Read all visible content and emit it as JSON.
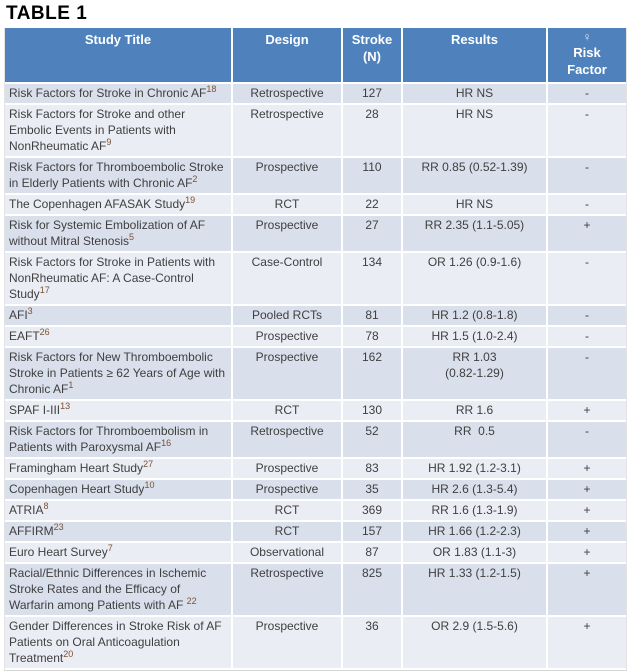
{
  "title": "TABLE 1",
  "colors": {
    "header_bg": "#4f81bd",
    "header_text": "#ffffff",
    "band_dark": "#d9dfeb",
    "band_light": "#eaedf4",
    "body_text": "#3f3f3f",
    "superscript_ref": "#7b5233"
  },
  "table": {
    "columns": [
      {
        "label": "Study Title"
      },
      {
        "label": "Design"
      },
      {
        "label": "Stroke\n(N)"
      },
      {
        "label": "Results"
      },
      {
        "symbol": "♀",
        "label": "Risk\nFactor"
      }
    ],
    "rows": [
      {
        "title": "Risk Factors for Stroke in Chronic AF",
        "sup": "18",
        "design": "Retrospective",
        "n": "127",
        "results": "HR NS",
        "risk": "-"
      },
      {
        "title": "Risk Factors for Stroke and other Embolic Events in Patients with NonRheumatic AF",
        "sup": "9",
        "design": "Retrospective",
        "n": "28",
        "results": "HR NS",
        "risk": "-"
      },
      {
        "title": "Risk Factors for Thromboembolic Stroke in Elderly Patients with Chronic AF",
        "sup": "2",
        "design": "Prospective",
        "n": "110",
        "results": "RR 0.85 (0.52-1.39)",
        "risk": "-"
      },
      {
        "title": "The Copenhagen AFASAK Study",
        "sup": "19",
        "design": "RCT",
        "n": "22",
        "results": "HR NS",
        "risk": "-"
      },
      {
        "title": "Risk for Systemic Embolization of AF without Mitral Stenosis",
        "sup": "5",
        "design": "Prospective",
        "n": "27",
        "results": "RR 2.35 (1.1-5.05)",
        "risk": "+"
      },
      {
        "title": "Risk Factors for Stroke in Patients with NonRheumatic AF: A Case-Control Study",
        "sup": "17",
        "design": "Case-Control",
        "n": "134",
        "results": "OR 1.26 (0.9-1.6)",
        "risk": "-"
      },
      {
        "title": "AFI",
        "sup": "3",
        "design": "Pooled RCTs",
        "n": "81",
        "results": "HR 1.2 (0.8-1.8)",
        "risk": "-"
      },
      {
        "title": "EAFT",
        "sup": "26",
        "design": "Prospective",
        "n": "78",
        "results": "HR 1.5 (1.0-2.4)",
        "risk": "-"
      },
      {
        "title": "Risk Factors for New Thromboembolic Stroke in Patients ≥ 62 Years of Age with Chronic AF",
        "sup": "1",
        "design": "Prospective",
        "n": "162",
        "results": "RR 1.03",
        "results2": "(0.82-1.29)",
        "risk": "-"
      },
      {
        "title": "SPAF I-III",
        "sup": "13",
        "design": "RCT",
        "n": "130",
        "results": "RR 1.6",
        "risk": "+"
      },
      {
        "title": "Risk Factors for Thromboembolism in Patients with Paroxysmal AF",
        "sup": "16",
        "design": "Retrospective",
        "n": "52",
        "results": "RR  0.5",
        "risk": "-"
      },
      {
        "title": "Framingham Heart Study",
        "sup": "27",
        "design": "Prospective",
        "n": "83",
        "results": "HR 1.92 (1.2-3.1)",
        "risk": "+"
      },
      {
        "title": "Copenhagen Heart Study",
        "sup": "10",
        "design": "Prospective",
        "n": "35",
        "results": "HR 2.6 (1.3-5.4)",
        "risk": "+"
      },
      {
        "title": "ATRIA",
        "sup": "8",
        "design": "RCT",
        "n": "369",
        "results": "RR 1.6 (1.3-1.9)",
        "risk": "+"
      },
      {
        "title": "AFFIRM",
        "sup": "23",
        "design": "RCT",
        "n": "157",
        "results": "HR 1.66 (1.2-2.3)",
        "risk": "+"
      },
      {
        "title": "Euro Heart Survey",
        "sup": "7",
        "design": "Observational",
        "n": "87",
        "results": "OR 1.83 (1.1-3)",
        "risk": "+"
      },
      {
        "title": "Racial/Ethnic Differences in Ischemic Stroke Rates and the Efficacy of Warfarin among Patients with AF ",
        "sup": "22",
        "design": "Retrospective",
        "n": "825",
        "results": "HR 1.33 (1.2-1.5)",
        "risk": "+"
      },
      {
        "title": "Gender Differences in Stroke Risk of AF Patients on Oral Anticoagulation Treatment",
        "sup": "20",
        "design": "Prospective",
        "n": "36",
        "results": "OR 2.9 (1.5-5.6)",
        "risk": "+"
      }
    ]
  }
}
